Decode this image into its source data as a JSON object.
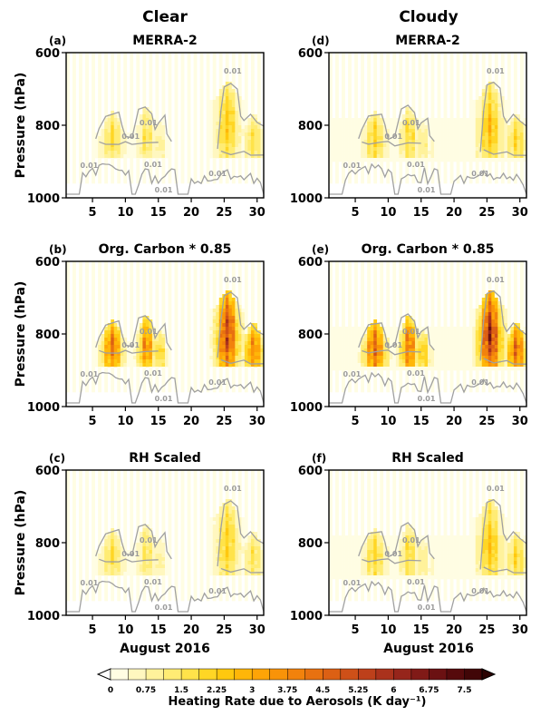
{
  "figure": {
    "column_titles": [
      "Clear",
      "Cloudy"
    ],
    "x_axis_label": "August 2016",
    "y_axis_label": "Pressure (hPa)",
    "colorbar_label": "Heating Rate due to Aerosols (K day⁻¹)",
    "colorbar_levels": [
      0,
      0.375,
      0.75,
      1.125,
      1.5,
      1.875,
      2.25,
      2.625,
      3,
      3.375,
      3.75,
      4.125,
      4.5,
      4.875,
      5.25,
      5.625,
      6,
      6.375,
      6.75,
      7.125,
      7.5,
      7.875
    ],
    "colorbar_tick_labels": [
      "0",
      "0.75",
      "1.5",
      "2.25",
      "3",
      "3.75",
      "4.5",
      "5.25",
      "6",
      "6.75",
      "7.5"
    ],
    "colorbar_colors": [
      "#fffde3",
      "#fff7bf",
      "#fff29b",
      "#ffec74",
      "#ffe34a",
      "#ffd625",
      "#ffc80e",
      "#ffb608",
      "#fea407",
      "#f99308",
      "#f2820c",
      "#e87110",
      "#dc6014",
      "#ce5018",
      "#bd401b",
      "#aa321c",
      "#96251b",
      "#801a17",
      "#6b1112",
      "#560a0c",
      "#410607",
      "#2c0303"
    ],
    "colorbar_extend": "both"
  },
  "chart_data": [
    {
      "type": "heatmap",
      "panel_label": "(a)",
      "title": "MERRA-2",
      "column": "Clear",
      "x_ticks": [
        5,
        10,
        15,
        20,
        25,
        30
      ],
      "xlim": [
        1,
        31
      ],
      "y_ticks": [
        600,
        800,
        1000
      ],
      "ylim": [
        1000,
        600
      ],
      "y_reversed": true,
      "contour_level_labels": [
        "0.01",
        "0.01",
        "0.01",
        "0.01",
        "0.01",
        "0.01",
        "0.01"
      ],
      "contour_color": "#a0a0a0",
      "intensity_scale": 1.0
    },
    {
      "type": "heatmap",
      "panel_label": "(b)",
      "title": "Org. Carbon * 0.85",
      "column": "Clear",
      "x_ticks": [
        5,
        10,
        15,
        20,
        25,
        30
      ],
      "xlim": [
        1,
        31
      ],
      "y_ticks": [
        600,
        800,
        1000
      ],
      "ylim": [
        1000,
        600
      ],
      "y_reversed": true,
      "contour_level_labels": [
        "0.01",
        "0.01",
        "0.01",
        "0.01",
        "0.01",
        "0.01",
        "0.01"
      ],
      "contour_color": "#a0a0a0",
      "intensity_scale": 2.3
    },
    {
      "type": "heatmap",
      "panel_label": "(c)",
      "title": "RH Scaled",
      "column": "Clear",
      "x_ticks": [
        5,
        10,
        15,
        20,
        25,
        30
      ],
      "xlim": [
        1,
        31
      ],
      "y_ticks": [
        600,
        800,
        1000
      ],
      "ylim": [
        1000,
        600
      ],
      "y_reversed": true,
      "contour_level_labels": [
        "0.01",
        "0.01",
        "0.01",
        "0.01",
        "0.01",
        "0.01",
        "0.01"
      ],
      "contour_color": "#a0a0a0",
      "intensity_scale": 0.95
    },
    {
      "type": "heatmap",
      "panel_label": "(d)",
      "title": "MERRA-2",
      "column": "Cloudy",
      "x_ticks": [
        5,
        10,
        15,
        20,
        25,
        30
      ],
      "xlim": [
        1,
        31
      ],
      "y_ticks": [
        600,
        800,
        1000
      ],
      "ylim": [
        1000,
        600
      ],
      "y_reversed": true,
      "contour_level_labels": [
        "0.01",
        "0.01",
        "0.01",
        "0.01",
        "0.01",
        "0.01",
        "0.01"
      ],
      "contour_color": "#a0a0a0",
      "intensity_scale": 1.05
    },
    {
      "type": "heatmap",
      "panel_label": "(e)",
      "title": "Org. Carbon * 0.85",
      "column": "Cloudy",
      "x_ticks": [
        5,
        10,
        15,
        20,
        25,
        30
      ],
      "xlim": [
        1,
        31
      ],
      "y_ticks": [
        600,
        800,
        1000
      ],
      "ylim": [
        1000,
        600
      ],
      "y_reversed": true,
      "contour_level_labels": [
        "0.01",
        "0.01",
        "0.01",
        "0.01",
        "0.01",
        "0.01",
        "0.01"
      ],
      "contour_color": "#a0a0a0",
      "intensity_scale": 2.5
    },
    {
      "type": "heatmap",
      "panel_label": "(f)",
      "title": "RH Scaled",
      "column": "Cloudy",
      "x_ticks": [
        5,
        10,
        15,
        20,
        25,
        30
      ],
      "xlim": [
        1,
        31
      ],
      "y_ticks": [
        600,
        800,
        1000
      ],
      "ylim": [
        1000,
        600
      ],
      "y_reversed": true,
      "contour_level_labels": [
        "0.01",
        "0.01",
        "0.01",
        "0.01",
        "0.01",
        "0.01",
        "0.01"
      ],
      "contour_color": "#a0a0a0",
      "intensity_scale": 1.0
    }
  ]
}
